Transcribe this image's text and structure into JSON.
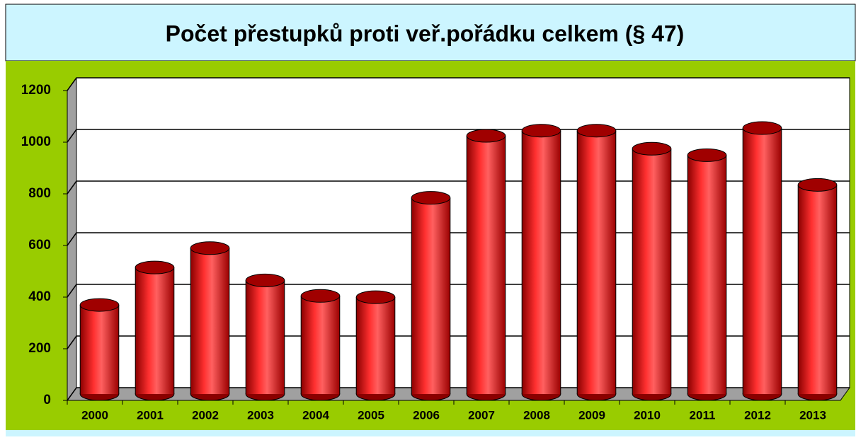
{
  "chart_data": {
    "type": "bar",
    "title": "Počet přestupků proti veř.pořádku celkem (§ 47)",
    "categories": [
      "2000",
      "2001",
      "2002",
      "2003",
      "2004",
      "2005",
      "2006",
      "2007",
      "2008",
      "2009",
      "2010",
      "2011",
      "2012",
      "2013"
    ],
    "values": [
      345,
      490,
      565,
      440,
      380,
      375,
      760,
      1000,
      1020,
      1020,
      950,
      925,
      1030,
      810
    ],
    "color": "#ff0000",
    "ylim": [
      0,
      1200
    ],
    "yticks": [
      0,
      200,
      400,
      600,
      800,
      1000,
      1200
    ],
    "grid": true
  }
}
